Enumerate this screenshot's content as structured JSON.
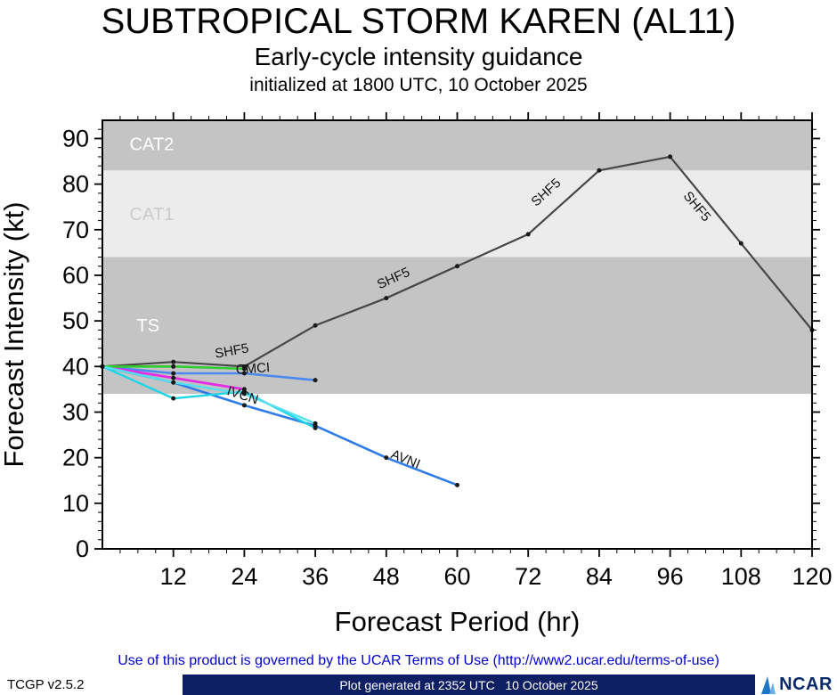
{
  "chart_data": {
    "type": "line",
    "title": "SUBTROPICAL STORM KAREN (AL11)",
    "subtitle": "Early-cycle intensity guidance",
    "init_line": "initialized at 1800 UTC, 10 October 2025",
    "xlabel": "Forecast Period (hr)",
    "ylabel": "Forecast Intensity (kt)",
    "xlim": [
      0,
      120
    ],
    "ylim": [
      0,
      94
    ],
    "xticks": [
      12,
      24,
      36,
      48,
      60,
      72,
      84,
      96,
      108,
      120
    ],
    "yticks": [
      0,
      10,
      20,
      30,
      40,
      50,
      60,
      70,
      80,
      90
    ],
    "grid": false,
    "legend": "none",
    "bands": [
      {
        "label": "TS",
        "from": 34,
        "to": 64,
        "color": "#c4c4c4",
        "label_color": "#ffffff",
        "label_x": 5.8,
        "label_y": 47.7
      },
      {
        "label": "CAT1",
        "from": 64,
        "to": 83,
        "color": "#ececec",
        "label_color": "#cccccc",
        "label_x": 4.6,
        "label_y": 72.1
      },
      {
        "label": "CAT2",
        "from": 83,
        "to": 94,
        "color": "#c4c4c4",
        "label_color": "#ffffff",
        "label_x": 4.6,
        "label_y": 87.5
      }
    ],
    "series": [
      {
        "name": "SHF5",
        "color": "#474747",
        "width": 2.2,
        "x": [
          0,
          12,
          24,
          36,
          48,
          60,
          72,
          84,
          96,
          108,
          120
        ],
        "values": [
          40,
          41,
          40,
          49,
          55,
          62,
          69,
          83,
          86,
          67,
          48
        ]
      },
      {
        "name": "CMCI",
        "color": "#4b89f0",
        "width": 2.6,
        "x": [
          0,
          12,
          24,
          36
        ],
        "values": [
          40,
          38.5,
          38.5,
          37
        ]
      },
      {
        "name": "AVNI",
        "color": "#2f7be8",
        "width": 2.6,
        "x": [
          0,
          12,
          24,
          36,
          48,
          60
        ],
        "values": [
          40,
          36.5,
          31.5,
          27,
          20,
          14
        ]
      },
      {
        "name": "IVCN",
        "color": "#e32ee3",
        "width": 2.8,
        "x": [
          0,
          12,
          24
        ],
        "values": [
          40,
          37.5,
          35
        ]
      },
      {
        "name": "unlabeled-green",
        "color": "#2fcc2f",
        "width": 2.6,
        "x": [
          0,
          12,
          24
        ],
        "values": [
          40,
          40,
          39.5
        ]
      },
      {
        "name": "unlabeled-cyan-a",
        "color": "#1cd6e6",
        "width": 2.4,
        "x": [
          0,
          12,
          24,
          36
        ],
        "values": [
          40,
          33,
          34.5,
          26.5
        ]
      },
      {
        "name": "unlabeled-cyan-b",
        "color": "#55e0ef",
        "width": 2.4,
        "x": [
          0,
          12,
          24,
          36
        ],
        "values": [
          40,
          36.5,
          34,
          27.5
        ]
      }
    ],
    "labels": [
      {
        "text": "SHF5",
        "x": 22,
        "y": 42.5,
        "rot": -10
      },
      {
        "text": "SHF5",
        "x": 49.5,
        "y": 58.5,
        "rot": -24
      },
      {
        "text": "SHF5",
        "x": 75.5,
        "y": 77.5,
        "rot": -42
      },
      {
        "text": "SHF5",
        "x": 100,
        "y": 74.5,
        "rot": 50
      },
      {
        "text": "CMCI",
        "x": 25.5,
        "y": 38.6,
        "rot": -4
      },
      {
        "text": "IVCN",
        "x": 23.5,
        "y": 32.8,
        "rot": 18
      },
      {
        "text": "AVNI",
        "x": 51,
        "y": 18.8,
        "rot": 22
      }
    ]
  },
  "footer": {
    "terms": "Use of this product is governed by the UCAR Terms of Use (http://www2.ucar.edu/terms-of-use)",
    "version": "TCGP v2.5.2",
    "generated": "Plot generated at 2352 UTC   10 October 2025",
    "logo_text": "NCAR"
  }
}
